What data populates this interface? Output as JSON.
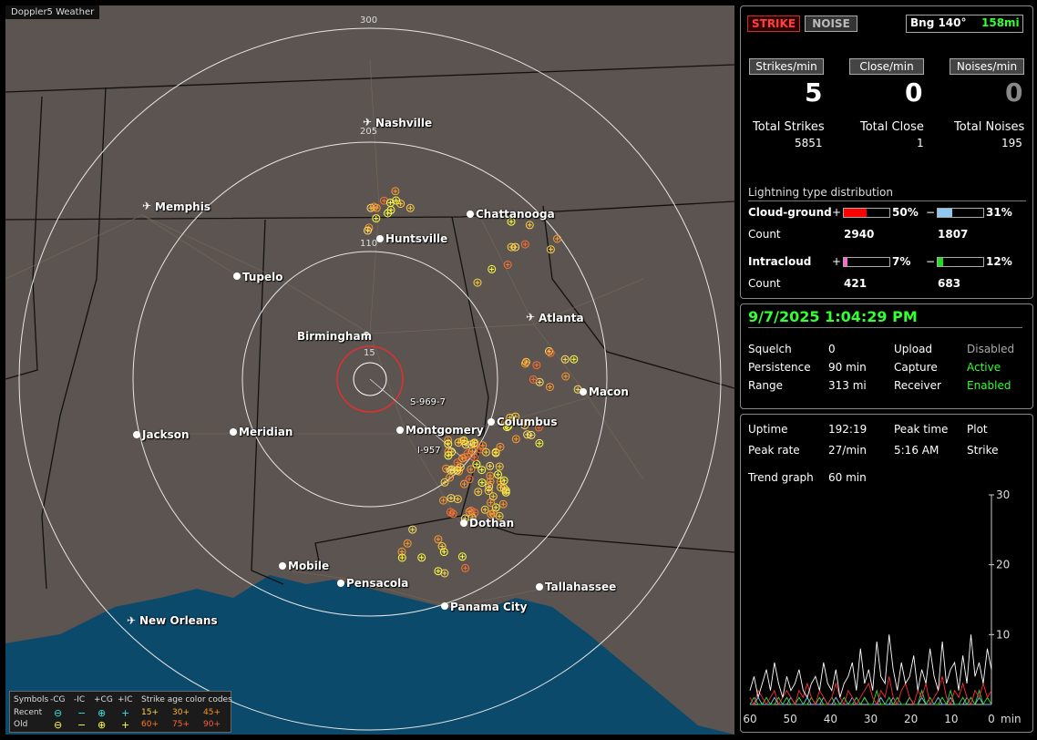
{
  "window_title": "Doppler5 Weather",
  "map": {
    "ring_labels": [
      "300",
      "205",
      "110",
      "15"
    ],
    "cities": [
      {
        "name": "Nashville",
        "airport": true
      },
      {
        "name": "Memphis",
        "airport": true
      },
      {
        "name": "Chattanooga",
        "airport": false
      },
      {
        "name": "Huntsville",
        "airport": false
      },
      {
        "name": "Tupelo",
        "airport": false
      },
      {
        "name": "Atlanta",
        "airport": true
      },
      {
        "name": "Birmingham",
        "airport": false
      },
      {
        "name": "Macon",
        "airport": false
      },
      {
        "name": "Columbus",
        "airport": false
      },
      {
        "name": "Montgomery",
        "airport": false
      },
      {
        "name": "Jackson",
        "airport": false
      },
      {
        "name": "Meridian",
        "airport": false
      },
      {
        "name": "Dothan",
        "airport": false
      },
      {
        "name": "Mobile",
        "airport": false
      },
      {
        "name": "Pensacola",
        "airport": false
      },
      {
        "name": "Tallahassee",
        "airport": false
      },
      {
        "name": "Panama City",
        "airport": false
      },
      {
        "name": "New Orleans",
        "airport": true
      }
    ],
    "markers": [
      "S-969-7",
      "I-957"
    ],
    "legend": {
      "symbols": "Symbols",
      "cols": [
        "-CG",
        "-IC",
        "+CG",
        "+IC"
      ],
      "age_title": "Strike age color codes",
      "recent": "Recent",
      "old": "Old",
      "recent_ages": [
        "15+",
        "30+",
        "45+"
      ],
      "old_ages": [
        "60+",
        "75+",
        "90+"
      ],
      "glyph_minus_cg": "⊖",
      "glyph_minus_ic": "−",
      "glyph_plus_cg": "⊕",
      "glyph_plus_ic": "+"
    }
  },
  "panel1": {
    "strike_btn": "STRIKE",
    "noise_btn": "NOISE",
    "bearing": "Bng 140°",
    "distance": "158mi",
    "rate_headers": [
      "Strikes/min",
      "Close/min",
      "Noises/min"
    ],
    "rates": [
      "5",
      "0",
      "0"
    ],
    "total_labels": [
      "Total Strikes",
      "Total Close",
      "Total Noises"
    ],
    "totals": [
      "5851",
      "1",
      "195"
    ],
    "dist_title": "Lightning type distribution",
    "cg_label": "Cloud-ground",
    "ic_label": "Intracloud",
    "count_label": "Count",
    "plus": "+",
    "minus": "−",
    "cg_pos_pct": "50%",
    "cg_neg_pct": "31%",
    "cg_pos_count": "2940",
    "cg_neg_count": "1807",
    "ic_pos_pct": "7%",
    "ic_neg_pct": "12%",
    "ic_pos_count": "421",
    "ic_neg_count": "683",
    "cg_pos_frac": 0.5,
    "cg_neg_frac": 0.31,
    "ic_pos_frac": 0.07,
    "ic_neg_frac": 0.12,
    "color_cg_pos": "#ff0000",
    "color_cg_neg": "#8fc8f0",
    "color_ic_pos": "#ff66cc",
    "color_ic_neg": "#22dd22"
  },
  "panel2": {
    "datetime": "9/7/2025 1:04:29 PM",
    "rows": [
      {
        "k": "Squelch",
        "v": "0",
        "k2": "Upload",
        "v2": "Disabled"
      },
      {
        "k": "Persistence",
        "v": "90 min",
        "k2": "Capture",
        "v2": "Active"
      },
      {
        "k": "Range",
        "v": "313 mi",
        "k2": "Receiver",
        "v2": "Enabled"
      }
    ]
  },
  "panel3": {
    "uptime_label": "Uptime",
    "uptime": "192:19",
    "peak_time_label": "Peak time",
    "plot_label": "Plot",
    "peak_rate_label": "Peak rate",
    "peak_rate": "27/min",
    "peak_time": "5:16 AM",
    "plot_value": "Strike",
    "trend_label": "Trend graph",
    "trend_value": "60 min",
    "graph": {
      "y_ticks": [
        "30",
        "20",
        "10"
      ],
      "x_ticks": [
        "60",
        "50",
        "40",
        "30",
        "20",
        "10",
        "0"
      ],
      "x_unit": "min",
      "ymax": 30,
      "series": [
        {
          "name": "white",
          "color": "#ffffff",
          "values": [
            2,
            4,
            1,
            3,
            5,
            2,
            6,
            3,
            1,
            4,
            2,
            3,
            5,
            2,
            1,
            3,
            4,
            2,
            6,
            3,
            2,
            5,
            1,
            3,
            4,
            6,
            2,
            8,
            3,
            5,
            2,
            9,
            4,
            3,
            10,
            5,
            2,
            6,
            3,
            4,
            7,
            2,
            5,
            3,
            8,
            4,
            2,
            9,
            3,
            5,
            6,
            2,
            7,
            3,
            10,
            4,
            6,
            3,
            8,
            5
          ]
        },
        {
          "name": "red",
          "color": "#ff3030",
          "values": [
            1,
            0,
            2,
            1,
            0,
            1,
            2,
            0,
            1,
            2,
            1,
            0,
            2,
            1,
            3,
            1,
            0,
            2,
            1,
            0,
            1,
            3,
            1,
            0,
            2,
            1,
            0,
            1,
            2,
            3,
            1,
            0,
            2,
            1,
            4,
            1,
            0,
            2,
            3,
            1,
            0,
            2,
            1,
            3,
            0,
            1,
            2,
            4,
            1,
            0,
            2,
            1,
            3,
            1,
            0,
            2,
            1,
            3,
            1,
            2
          ]
        },
        {
          "name": "green",
          "color": "#33dd33",
          "values": [
            0,
            1,
            0,
            0,
            1,
            0,
            0,
            1,
            0,
            1,
            0,
            0,
            1,
            0,
            0,
            1,
            0,
            1,
            0,
            0,
            1,
            0,
            0,
            1,
            0,
            0,
            1,
            0,
            1,
            0,
            0,
            2,
            0,
            0,
            1,
            0,
            1,
            0,
            0,
            1,
            0,
            0,
            2,
            0,
            1,
            0,
            0,
            1,
            0,
            2,
            0,
            0,
            1,
            0,
            1,
            0,
            2,
            0,
            1,
            0
          ]
        },
        {
          "name": "blue",
          "color": "#88bbff",
          "values": [
            0,
            0,
            1,
            0,
            0,
            0,
            1,
            0,
            0,
            0,
            1,
            0,
            0,
            0,
            1,
            0,
            0,
            0,
            1,
            0,
            0,
            1,
            0,
            0,
            0,
            1,
            0,
            0,
            1,
            0,
            0,
            0,
            1,
            0,
            0,
            1,
            0,
            0,
            0,
            1,
            0,
            0,
            1,
            0,
            0,
            0,
            1,
            0,
            0,
            1,
            0,
            0,
            0,
            1,
            0,
            0,
            1,
            0,
            0,
            0
          ]
        }
      ]
    }
  }
}
